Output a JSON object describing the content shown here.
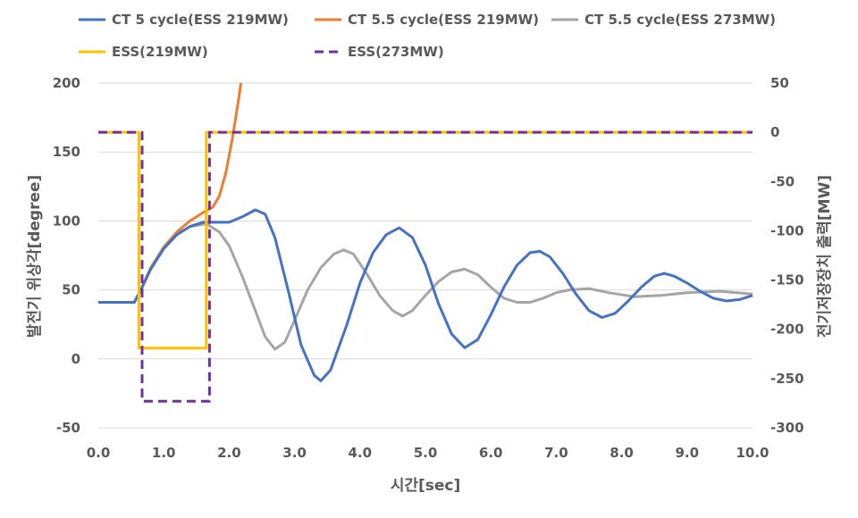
{
  "chart_data": {
    "type": "line",
    "xlabel": "시간[sec]",
    "ylabel_left": "발전기 위상각[degree]",
    "ylabel_right": "전기저장장치 출력[MW]",
    "xlim": [
      0,
      10
    ],
    "ylim_left": [
      -50,
      200
    ],
    "ylim_right": [
      -300,
      50
    ],
    "x_ticks": [
      "0.0",
      "1.0",
      "2.0",
      "3.0",
      "4.0",
      "5.0",
      "6.0",
      "7.0",
      "8.0",
      "9.0",
      "10.0"
    ],
    "y_left_ticks": [
      "200",
      "150",
      "100",
      "50",
      "0",
      "-50"
    ],
    "y_right_ticks": [
      "50",
      "0",
      "-50",
      "-100",
      "-150",
      "-200",
      "-250",
      "-300"
    ],
    "grid": "horizontal",
    "legend_position": "top",
    "series": [
      {
        "name": "CT 5 cycle(ESS 219MW)",
        "axis": "left",
        "color": "#4472C4",
        "dash": "solid",
        "points": [
          [
            0,
            41
          ],
          [
            0.55,
            41
          ],
          [
            0.65,
            50
          ],
          [
            0.8,
            65
          ],
          [
            1.0,
            80
          ],
          [
            1.2,
            90
          ],
          [
            1.4,
            96
          ],
          [
            1.6,
            99
          ],
          [
            1.8,
            99
          ],
          [
            2.0,
            99
          ],
          [
            2.2,
            103
          ],
          [
            2.4,
            108
          ],
          [
            2.55,
            105
          ],
          [
            2.7,
            88
          ],
          [
            2.9,
            50
          ],
          [
            3.1,
            10
          ],
          [
            3.3,
            -12
          ],
          [
            3.4,
            -16
          ],
          [
            3.55,
            -8
          ],
          [
            3.8,
            25
          ],
          [
            4.0,
            55
          ],
          [
            4.2,
            77
          ],
          [
            4.4,
            90
          ],
          [
            4.6,
            95
          ],
          [
            4.8,
            88
          ],
          [
            5.0,
            68
          ],
          [
            5.2,
            40
          ],
          [
            5.4,
            18
          ],
          [
            5.6,
            8
          ],
          [
            5.8,
            14
          ],
          [
            6.0,
            32
          ],
          [
            6.2,
            52
          ],
          [
            6.4,
            68
          ],
          [
            6.6,
            77
          ],
          [
            6.75,
            78
          ],
          [
            6.9,
            74
          ],
          [
            7.1,
            62
          ],
          [
            7.3,
            47
          ],
          [
            7.5,
            35
          ],
          [
            7.7,
            30
          ],
          [
            7.9,
            33
          ],
          [
            8.1,
            42
          ],
          [
            8.3,
            52
          ],
          [
            8.5,
            60
          ],
          [
            8.65,
            62
          ],
          [
            8.8,
            60
          ],
          [
            9.0,
            55
          ],
          [
            9.2,
            49
          ],
          [
            9.4,
            44
          ],
          [
            9.6,
            42
          ],
          [
            9.8,
            43
          ],
          [
            10.0,
            46
          ]
        ]
      },
      {
        "name": "CT 5.5 cycle(ESS 219MW)",
        "axis": "left",
        "color": "#ED7D31",
        "dash": "solid",
        "points": [
          [
            0,
            41
          ],
          [
            0.55,
            41
          ],
          [
            0.65,
            50
          ],
          [
            0.8,
            66
          ],
          [
            1.0,
            81
          ],
          [
            1.2,
            92
          ],
          [
            1.4,
            100
          ],
          [
            1.6,
            106
          ],
          [
            1.75,
            110
          ],
          [
            1.85,
            118
          ],
          [
            1.95,
            135
          ],
          [
            2.05,
            160
          ],
          [
            2.15,
            190
          ],
          [
            2.18,
            200
          ]
        ]
      },
      {
        "name": "CT 5.5 cycle(ESS 273MW)",
        "axis": "left",
        "color": "#A5A5A5",
        "dash": "solid",
        "points": [
          [
            0,
            41
          ],
          [
            0.55,
            41
          ],
          [
            0.65,
            50
          ],
          [
            0.8,
            65
          ],
          [
            1.0,
            80
          ],
          [
            1.2,
            90
          ],
          [
            1.4,
            96
          ],
          [
            1.65,
            98
          ],
          [
            1.85,
            92
          ],
          [
            2.0,
            82
          ],
          [
            2.2,
            60
          ],
          [
            2.4,
            35
          ],
          [
            2.55,
            16
          ],
          [
            2.7,
            7
          ],
          [
            2.85,
            12
          ],
          [
            3.0,
            28
          ],
          [
            3.2,
            50
          ],
          [
            3.4,
            66
          ],
          [
            3.6,
            76
          ],
          [
            3.75,
            79
          ],
          [
            3.9,
            76
          ],
          [
            4.1,
            62
          ],
          [
            4.3,
            46
          ],
          [
            4.5,
            35
          ],
          [
            4.65,
            31
          ],
          [
            4.8,
            35
          ],
          [
            5.0,
            46
          ],
          [
            5.2,
            56
          ],
          [
            5.4,
            63
          ],
          [
            5.6,
            65
          ],
          [
            5.8,
            61
          ],
          [
            6.0,
            52
          ],
          [
            6.2,
            44
          ],
          [
            6.4,
            41
          ],
          [
            6.6,
            41
          ],
          [
            6.8,
            44
          ],
          [
            7.0,
            48
          ],
          [
            7.2,
            50
          ],
          [
            7.5,
            51
          ],
          [
            7.8,
            48
          ],
          [
            8.2,
            45
          ],
          [
            8.6,
            46
          ],
          [
            9.0,
            48
          ],
          [
            9.5,
            49
          ],
          [
            10.0,
            47
          ]
        ]
      },
      {
        "name": "ESS(219MW)",
        "axis": "right",
        "color": "#FFC000",
        "dash": "solid",
        "points": [
          [
            0,
            0
          ],
          [
            0.62,
            0
          ],
          [
            0.62,
            -219
          ],
          [
            1.65,
            -219
          ],
          [
            1.65,
            0
          ],
          [
            10.0,
            0
          ]
        ]
      },
      {
        "name": "ESS(273MW)",
        "axis": "right",
        "color": "#7030A0",
        "dash": "dashed",
        "points": [
          [
            0,
            0
          ],
          [
            0.67,
            0
          ],
          [
            0.67,
            -273
          ],
          [
            1.7,
            -273
          ],
          [
            1.7,
            0
          ],
          [
            10.0,
            0
          ]
        ]
      }
    ]
  }
}
